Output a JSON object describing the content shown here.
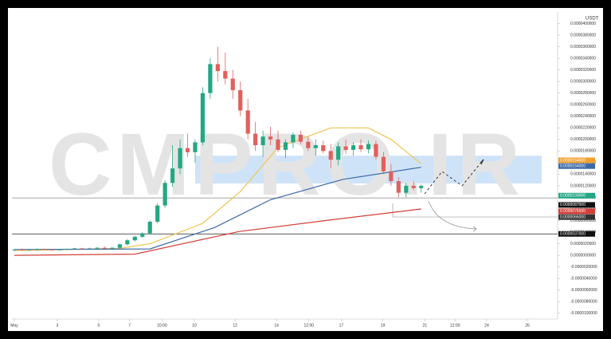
{
  "chart_data": {
    "type": "candlestick",
    "unit_label": "USDT",
    "watermark": "CMPRO.IR",
    "x": [
      0,
      1,
      2,
      3,
      4,
      5,
      6,
      7,
      8,
      9,
      10,
      11,
      12,
      13,
      14,
      15,
      16,
      17,
      18,
      19,
      20,
      21,
      22,
      23,
      24,
      25,
      26,
      27,
      28,
      29,
      30,
      31,
      32,
      33,
      34,
      35,
      36,
      37,
      38,
      39,
      40,
      41,
      42,
      43,
      44,
      45,
      46,
      47,
      48,
      49,
      50,
      51,
      52,
      53,
      54
    ],
    "open": [
      9e-07,
      1e-06,
      9e-07,
      1e-06,
      1.1e-06,
      1e-06,
      9e-07,
      1e-06,
      1.1e-06,
      1.2e-06,
      1.1e-06,
      1.2e-06,
      1.3e-06,
      1.2e-06,
      1.3e-06,
      1.9e-06,
      2.6e-06,
      3.2e-06,
      3.8e-06,
      5.8e-06,
      8.6e-06,
      1.25e-05,
      1.5e-05,
      1.85e-05,
      1.78e-05,
      1.95e-05,
      2.8e-05,
      3.3e-05,
      3.18e-05,
      3.05e-05,
      2.85e-05,
      2.5e-05,
      2.1e-05,
      1.9e-05,
      2.05e-05,
      2e-05,
      1.82e-05,
      1.95e-05,
      2.08e-05,
      1.96e-05,
      1.85e-05,
      1.9e-05,
      1.8e-05,
      1.65e-05,
      1.88e-05,
      1.82e-05,
      1.9e-05,
      1.83e-05,
      1.92e-05,
      1.7e-05,
      1.45e-05,
      1.28e-05,
      1.08e-05,
      1.2e-05,
      1.16e-05
    ],
    "high": [
      1.1e-06,
      1.2e-06,
      1.1e-06,
      1.2e-06,
      1.2e-06,
      1.1e-06,
      1.1e-06,
      1.2e-06,
      1.3e-06,
      1.3e-06,
      1.3e-06,
      1.4e-06,
      1.5e-06,
      1.4e-06,
      2e-06,
      2.8e-06,
      3.4e-06,
      4e-06,
      6e-06,
      9e-06,
      1.3e-05,
      1.9e-05,
      2e-05,
      2.1e-05,
      2e-05,
      2.9e-05,
      3.4e-05,
      3.6e-05,
      3.5e-05,
      3.2e-05,
      3e-05,
      2.7e-05,
      2.3e-05,
      2.15e-05,
      2.22e-05,
      2.15e-05,
      2e-05,
      2.12e-05,
      2.15e-05,
      2.05e-05,
      2e-05,
      1.98e-05,
      1.92e-05,
      1.95e-05,
      2e-05,
      1.95e-05,
      2e-05,
      1.98e-05,
      1.98e-05,
      1.78e-05,
      1.58e-05,
      1.35e-05,
      1.25e-05,
      1.28e-05,
      1.22e-05
    ],
    "low": [
      7e-07,
      8e-07,
      8e-07,
      9e-07,
      9e-07,
      8e-07,
      8e-07,
      9e-07,
      1e-06,
      1e-06,
      1e-06,
      1.1e-06,
      1.1e-06,
      1.1e-06,
      1.2e-06,
      1.7e-06,
      2.4e-06,
      3e-06,
      3.6e-06,
      5.5e-06,
      8.2e-06,
      1.18e-05,
      1.4e-05,
      1.7e-05,
      1.6e-05,
      1.9e-05,
      2.7e-05,
      3e-05,
      2.95e-05,
      2.7e-05,
      2.4e-05,
      2e-05,
      1.8e-05,
      1.7e-05,
      1.9e-05,
      1.78e-05,
      1.68e-05,
      1.85e-05,
      1.92e-05,
      1.8e-05,
      1.72e-05,
      1.76e-05,
      1.5e-05,
      1.55e-05,
      1.75e-05,
      1.72e-05,
      1.78e-05,
      1.76e-05,
      1.65e-05,
      1.4e-05,
      1.2e-05,
      1e-05,
      1e-05,
      1.12e-05,
      1.08e-05
    ],
    "close": [
      1e-06,
      9e-07,
      1e-06,
      1.1e-06,
      1e-06,
      9e-07,
      1e-06,
      1.1e-06,
      1.2e-06,
      1.1e-06,
      1.2e-06,
      1.3e-06,
      1.2e-06,
      1.3e-06,
      1.9e-06,
      2.6e-06,
      3.2e-06,
      3.8e-06,
      5.8e-06,
      8.6e-06,
      1.25e-05,
      1.5e-05,
      1.85e-05,
      1.78e-05,
      1.95e-05,
      2.8e-05,
      3.3e-05,
      3.18e-05,
      3.05e-05,
      2.85e-05,
      2.5e-05,
      2.1e-05,
      1.9e-05,
      2.05e-05,
      2e-05,
      1.82e-05,
      1.95e-05,
      2.08e-05,
      1.96e-05,
      1.85e-05,
      1.9e-05,
      1.8e-05,
      1.65e-05,
      1.88e-05,
      1.82e-05,
      1.9e-05,
      1.83e-05,
      1.92e-05,
      1.7e-05,
      1.45e-05,
      1.28e-05,
      1.08e-05,
      1.2e-05,
      1.16e-05,
      1.2e-05
    ],
    "up_color": "#22a884",
    "down_color": "#e0605d",
    "series": [
      {
        "color": "#f0c454",
        "x": [
          0,
          14,
          18,
          22,
          25,
          30,
          35,
          42,
          47,
          50,
          54
        ],
        "values": [
          8e-07,
          1.2e-06,
          2e-06,
          4e-06,
          5.5e-06,
          1.1e-05,
          1.86e-05,
          2.2e-05,
          2.2e-05,
          2e-05,
          1.58e-05
        ]
      },
      {
        "color": "#3d6aa6",
        "x": [
          0,
          18,
          26.6,
          34,
          43.6,
          54
        ],
        "values": [
          1e-06,
          1.1e-06,
          4.8e-06,
          9.6e-06,
          1.31e-05,
          1.52e-05
        ]
      },
      {
        "color": "#d23f38",
        "x": [
          0,
          16,
          29.8,
          42.5,
          54
        ],
        "values": [
          0,
          2e-07,
          4.1e-06,
          6.2e-06,
          8e-06
        ]
      }
    ],
    "band": {
      "ylim": [
        1.24e-05,
        1.72e-05
      ],
      "xlim": [
        24,
        70
      ],
      "color": "#cfe3f8"
    },
    "hlines": [
      {
        "value": 9.9e-06,
        "color": "#999999"
      },
      {
        "value": 3.7e-06,
        "color": "#222222"
      }
    ],
    "price_tags": [
      {
        "value": 1.64e-05,
        "label": "0.0000164000",
        "color": "#f0a030"
      },
      {
        "value": 1.54e-05,
        "label": "0.0000154000",
        "color": "#3d6aa6"
      },
      {
        "value": 1.03e-05,
        "label": "0.0000103000",
        "color": "#22a884"
      },
      {
        "value": 8.7e-06,
        "label": "0.0000087000",
        "color": "#111111"
      },
      {
        "value": 7.6e-06,
        "label": "0.0000076000",
        "color": "#d23f38"
      },
      {
        "value": 6.6e-06,
        "label": "0.0000066000",
        "color": "#333333"
      },
      {
        "value": 3.7e-06,
        "label": "0.0000037000",
        "color": "#111111"
      }
    ],
    "xlim": [
      0,
      70
    ],
    "xticks": [
      {
        "value": 0,
        "label": "May"
      },
      {
        "value": 5.7,
        "label": "3"
      },
      {
        "value": 11.2,
        "label": "5"
      },
      {
        "value": 15.3,
        "label": "7"
      },
      {
        "value": 19.6,
        "label": "10:00"
      },
      {
        "value": 23.9,
        "label": "10"
      },
      {
        "value": 29.3,
        "label": "12"
      },
      {
        "value": 34.8,
        "label": "14"
      },
      {
        "value": 39.1,
        "label": "12:00"
      },
      {
        "value": 43.4,
        "label": "17"
      },
      {
        "value": 48.9,
        "label": "19"
      },
      {
        "value": 54.5,
        "label": "21"
      },
      {
        "value": 58.5,
        "label": "12:00"
      },
      {
        "value": 62.7,
        "label": "24"
      },
      {
        "value": 68.1,
        "label": "26"
      }
    ],
    "ylim": [
      -1.1e-05,
      4.2e-05
    ],
    "yticks": [
      {
        "value": -1e-05,
        "label": "-0.0000100000"
      },
      {
        "value": -8e-06,
        "label": "-0.0000080000"
      },
      {
        "value": -6e-06,
        "label": "-0.0000060000"
      },
      {
        "value": -4e-06,
        "label": "-0.0000040000"
      },
      {
        "value": -2e-06,
        "label": "-0.0000020000"
      },
      {
        "value": 0,
        "label": "0.0000000000"
      },
      {
        "value": 2e-06,
        "label": "0.0000020000"
      },
      {
        "value": 4e-06,
        "label": "0.0000040000"
      },
      {
        "value": 6e-06,
        "label": "0.0000060000"
      },
      {
        "value": 8e-06,
        "label": "0.0000080000"
      },
      {
        "value": 1e-05,
        "label": "0.0000100000"
      },
      {
        "value": 1.2e-05,
        "label": "0.0000120000"
      },
      {
        "value": 1.4e-05,
        "label": "0.0000140000"
      },
      {
        "value": 1.6e-05,
        "label": "0.0000160000"
      },
      {
        "value": 1.8e-05,
        "label": "0.0000180000"
      },
      {
        "value": 2e-05,
        "label": "0.0000200000"
      },
      {
        "value": 2.2e-05,
        "label": "0.0000220000"
      },
      {
        "value": 2.4e-05,
        "label": "0.0000240000"
      },
      {
        "value": 2.6e-05,
        "label": "0.0000260000"
      },
      {
        "value": 2.8e-05,
        "label": "0.0000280000"
      },
      {
        "value": 3e-05,
        "label": "0.0000300000"
      },
      {
        "value": 3.2e-05,
        "label": "0.0000320000"
      },
      {
        "value": 3.4e-05,
        "label": "0.0000340000"
      },
      {
        "value": 3.6e-05,
        "label": "0.0000360000"
      },
      {
        "value": 3.8e-05,
        "label": "0.0000380000"
      },
      {
        "value": 4e-05,
        "label": "0.0000400000"
      }
    ]
  }
}
